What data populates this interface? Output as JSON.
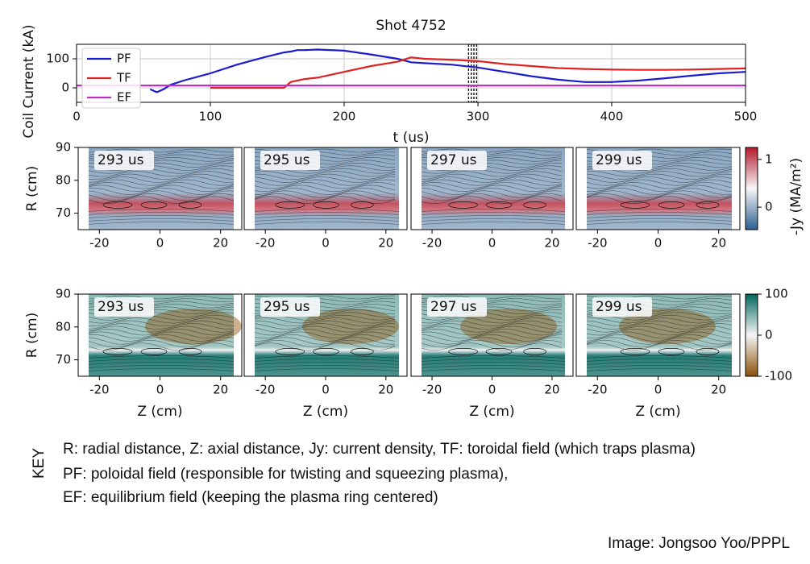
{
  "chart_data": [
    {
      "type": "line",
      "title": "Shot 4752",
      "y_label": "Coil Current (kA)",
      "x_label": "t (us)",
      "x": [
        0,
        50,
        55,
        60,
        65,
        70,
        80,
        100,
        120,
        140,
        155,
        160,
        165,
        170,
        180,
        200,
        220,
        240,
        250,
        260,
        280,
        300,
        320,
        340,
        360,
        380,
        400,
        420,
        440,
        460,
        480,
        500
      ],
      "series": [
        {
          "name": "PF",
          "color": "#1c1ccf",
          "values": [
            null,
            null,
            -5,
            -15,
            -5,
            10,
            25,
            50,
            80,
            105,
            122,
            125,
            130,
            130,
            132,
            128,
            115,
            100,
            88,
            85,
            80,
            70,
            55,
            40,
            28,
            20,
            20,
            25,
            33,
            42,
            50,
            55
          ]
        },
        {
          "name": "TF",
          "color": "#e02222",
          "values": [
            null,
            null,
            null,
            null,
            null,
            null,
            null,
            0,
            0,
            0,
            0,
            20,
            25,
            30,
            35,
            55,
            75,
            90,
            105,
            100,
            97,
            92,
            82,
            75,
            68,
            65,
            63,
            62,
            62,
            63,
            65,
            67
          ]
        },
        {
          "name": "EF",
          "color": "#c030c0",
          "values": [
            8,
            8,
            8,
            8,
            8,
            8,
            8,
            8,
            8,
            8,
            8,
            8,
            8,
            8,
            8,
            8,
            8,
            8,
            8,
            8,
            8,
            8,
            8,
            8,
            8,
            8,
            8,
            8,
            8,
            8,
            8,
            8
          ]
        }
      ],
      "markers": [
        293,
        295,
        297,
        299
      ],
      "xlim": [
        0,
        500
      ],
      "xticks": [
        0,
        100,
        200,
        300,
        400,
        500
      ],
      "ylim": [
        -50,
        150
      ],
      "yticks": [
        0,
        100
      ],
      "grid": true,
      "legend": "upper left"
    },
    {
      "type": "heatmap",
      "y_label": "R (cm)",
      "x_label": "Z (cm)",
      "xlim": [
        -27,
        27
      ],
      "xticks": [
        -20,
        0,
        20
      ],
      "ylim": [
        65,
        90
      ],
      "yticks": [
        70,
        80,
        90
      ],
      "rows": [
        {
          "panel_labels": [
            "293 us",
            "295 us",
            "297 us",
            "299 us"
          ],
          "colorbar_label": "-Jy (MA/m²)",
          "clim": [
            -0.47,
            1.25
          ],
          "cticks": [
            0,
            1
          ],
          "colors": [
            "#2c5f8f",
            "#f7f7f7",
            "#b2182b"
          ]
        },
        {
          "panel_labels": [
            "293 us",
            "295 us",
            "297 us",
            "299 us"
          ],
          "clim": [
            -100,
            100
          ],
          "cticks": [
            -100,
            0,
            100
          ],
          "colors": [
            "#8c510a",
            "#f5f5f5",
            "#01665e"
          ]
        }
      ]
    }
  ],
  "key": {
    "heading": "KEY",
    "lines": [
      "R: radial distance, Z: axial distance, Jy: current density, TF: toroidal field (which traps plasma)",
      "PF: poloidal field (responsible for twisting and squeezing plasma),",
      "EF: equilibrium field (keeping the plasma ring centered)"
    ]
  },
  "credit": "Image: Jongsoo Yoo/PPPL"
}
